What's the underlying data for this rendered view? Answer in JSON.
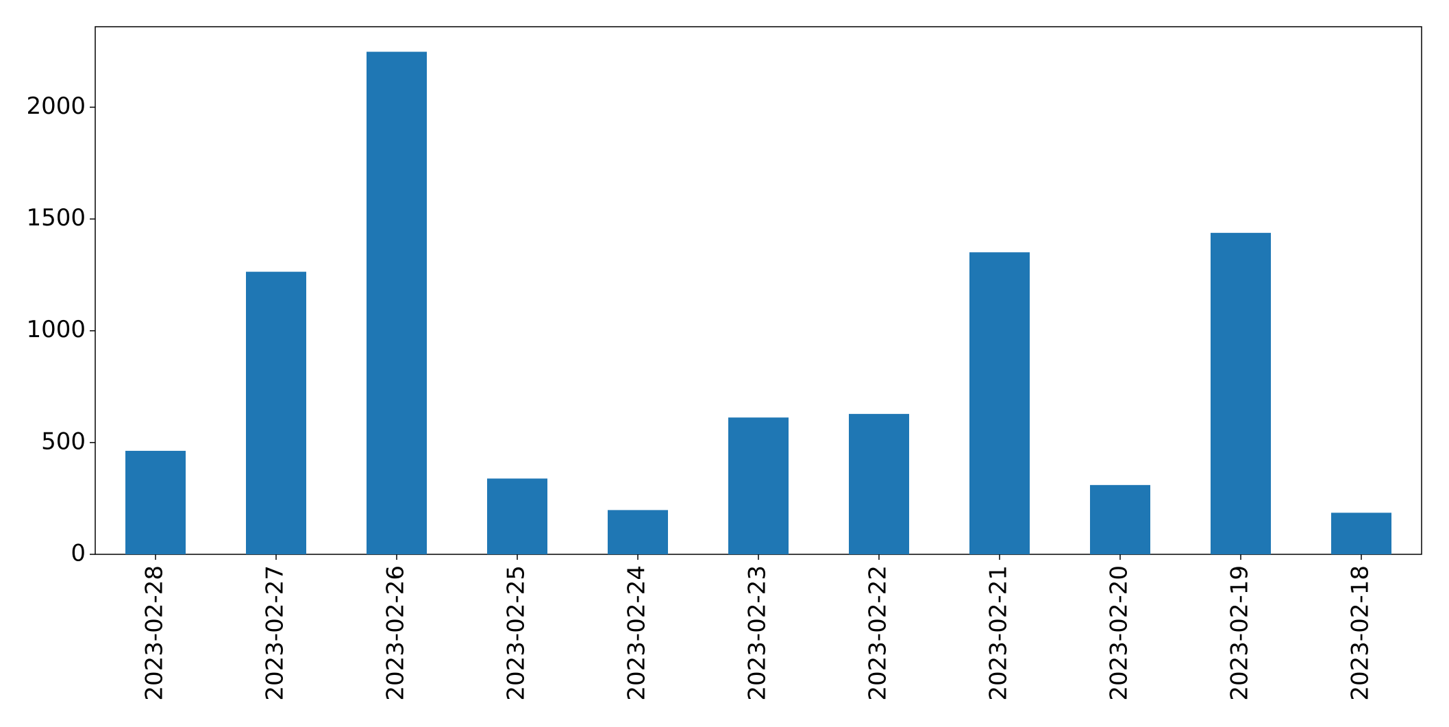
{
  "chart_data": {
    "type": "bar",
    "categories": [
      "2023-02-28",
      "2023-02-27",
      "2023-02-26",
      "2023-02-25",
      "2023-02-24",
      "2023-02-23",
      "2023-02-22",
      "2023-02-21",
      "2023-02-20",
      "2023-02-19",
      "2023-02-18"
    ],
    "values": [
      463,
      1264,
      2248,
      339,
      198,
      612,
      628,
      1351,
      310,
      1438,
      186
    ],
    "color": "#1f77b4",
    "ylim": [
      0,
      2360
    ],
    "yticks": [
      0,
      500,
      1000,
      1500,
      2000
    ],
    "grid": false
  }
}
